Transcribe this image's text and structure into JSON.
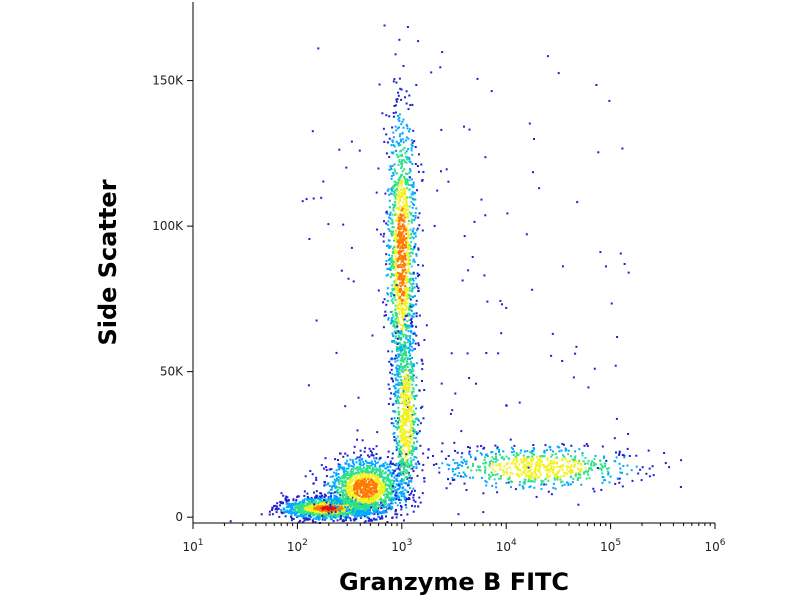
{
  "chart_data": {
    "type": "scatter",
    "plot_style": "flow-cytometry density dot plot",
    "xlabel": "Granzyme B FITC",
    "ylabel": "Side Scatter",
    "x_scale": "log",
    "xlim": [
      10,
      1000000
    ],
    "ylim": [
      -2000,
      177000
    ],
    "x_ticks": [
      {
        "value": 10,
        "base": "10",
        "exp": "1"
      },
      {
        "value": 100,
        "base": "10",
        "exp": "2"
      },
      {
        "value": 1000,
        "base": "10",
        "exp": "3"
      },
      {
        "value": 10000,
        "base": "10",
        "exp": "4"
      },
      {
        "value": 100000,
        "base": "10",
        "exp": "5"
      },
      {
        "value": 1000000,
        "base": "10",
        "exp": "6"
      }
    ],
    "y_ticks": [
      {
        "value": 0,
        "label": "0"
      },
      {
        "value": 50000,
        "label": "50K"
      },
      {
        "value": 100000,
        "label": "100K"
      },
      {
        "value": 150000,
        "label": "150K"
      }
    ],
    "populations": [
      {
        "x_center": 200,
        "y_center": 3000,
        "x_spread_decades": 0.22,
        "y_spread": 1800,
        "density": "very high"
      },
      {
        "x_center": 450,
        "y_center": 10000,
        "x_spread_decades": 0.18,
        "y_spread": 5000,
        "density": "high"
      },
      {
        "x_center": 1000,
        "y_center": 90000,
        "x_spread_decades": 0.07,
        "y_spread": 25000,
        "density": "high"
      },
      {
        "x_center": 1100,
        "y_center": 35000,
        "x_spread_decades": 0.06,
        "y_spread": 15000,
        "density": "medium"
      },
      {
        "x_center": 20000,
        "y_center": 17000,
        "x_spread_decades": 0.45,
        "y_spread": 3500,
        "density": "medium"
      }
    ],
    "density_colors": [
      "#1f1fd1",
      "#00a8ff",
      "#2fe08a",
      "#f2f21c",
      "#ff7a00",
      "#e01010"
    ],
    "grid": false,
    "legend": "none"
  }
}
